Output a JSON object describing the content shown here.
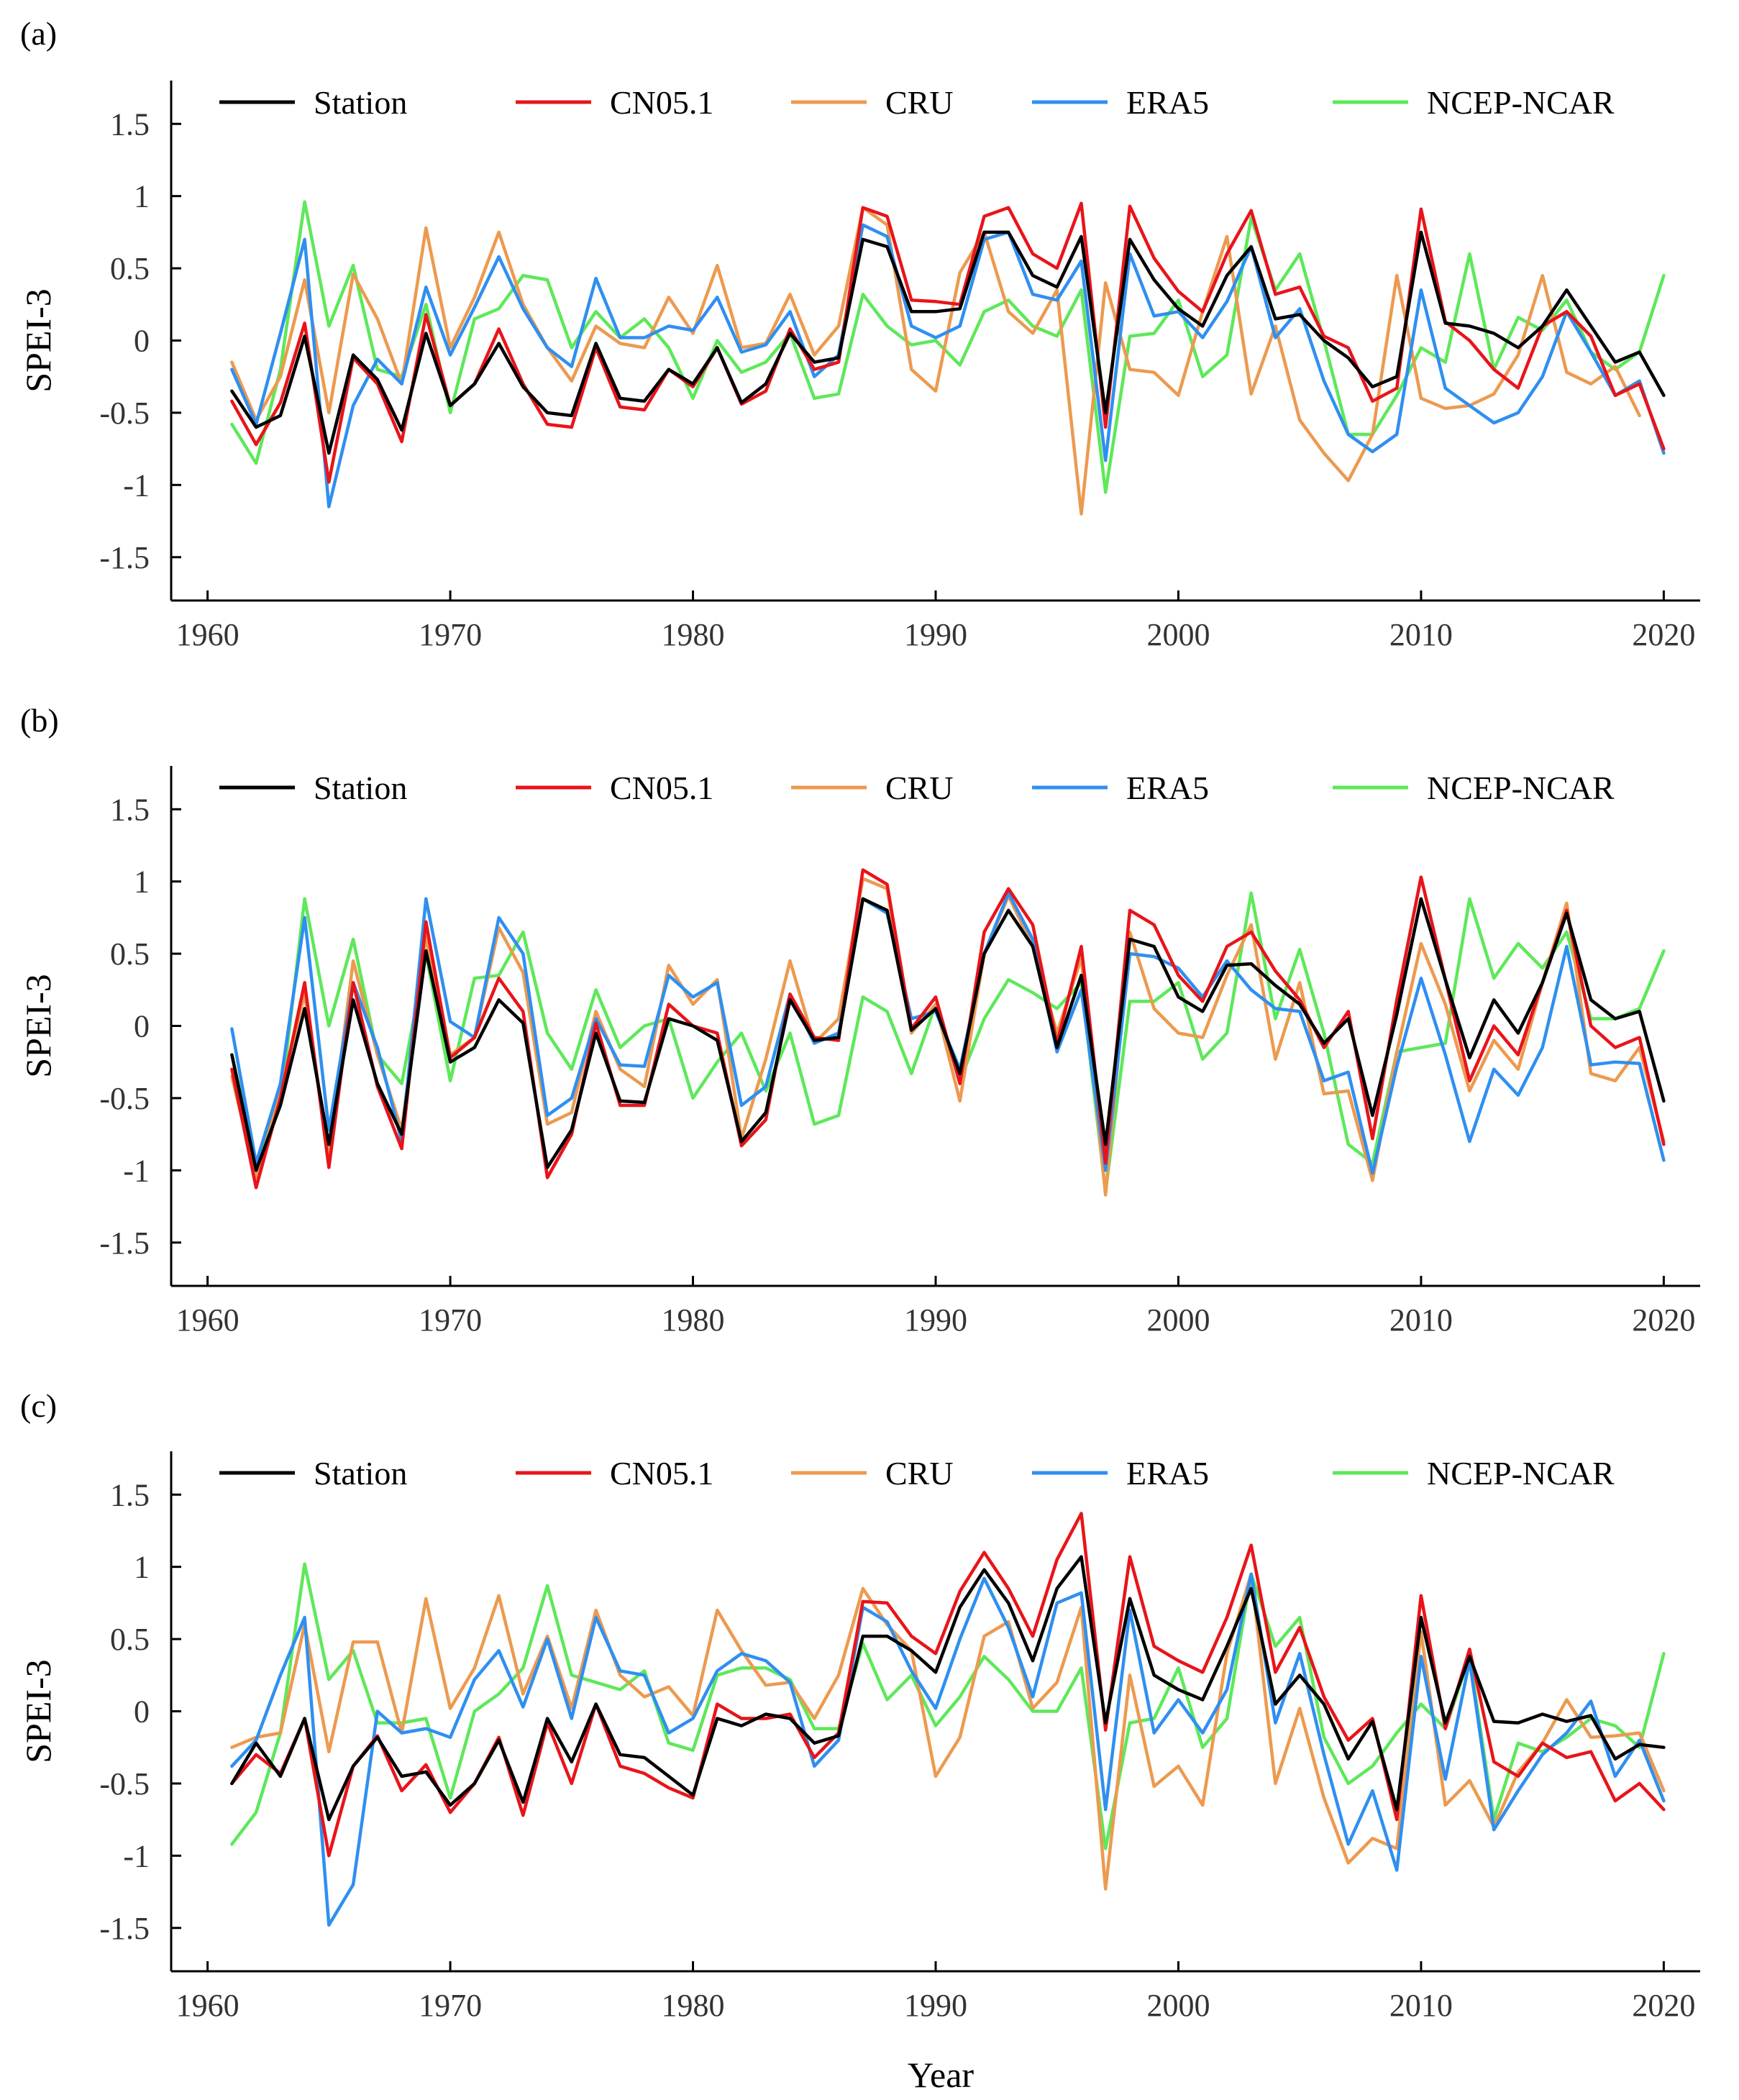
{
  "figure": {
    "xlabel": "Year",
    "colors": {
      "Station": "#000000",
      "CN05.1": "#e8141a",
      "CRU": "#ec9a50",
      "ERA5": "#2f8ff0",
      "NCEP-NCAR": "#5ee85a"
    }
  },
  "chart_data": [
    {
      "panel": "(a)",
      "type": "line",
      "ylabel": "SPEI-3",
      "ylim": [
        -1.8,
        1.8
      ],
      "xlim": [
        1958.5,
        2021.5
      ],
      "xticks": [
        1960,
        1970,
        1980,
        1990,
        2000,
        2010,
        2020
      ],
      "yticks": [
        1.5,
        1,
        0.5,
        0,
        -0.5,
        -1,
        -1.5
      ],
      "ytick_labels": [
        "1.5",
        "1",
        "0.5",
        "0",
        "-0.5",
        "-1",
        "-1.5"
      ],
      "x_start": 1961,
      "series": [
        {
          "name": "NCEP-NCAR",
          "values": [
            -0.58,
            -0.85,
            -0.2,
            0.96,
            0.1,
            0.52,
            -0.2,
            -0.25,
            0.25,
            -0.5,
            0.15,
            0.22,
            0.45,
            0.42,
            -0.05,
            0.2,
            0.02,
            0.15,
            -0.05,
            -0.4,
            0.0,
            -0.22,
            -0.15,
            0.05,
            -0.4,
            -0.37,
            0.32,
            0.1,
            -0.03,
            0.0,
            -0.17,
            0.2,
            0.28,
            0.1,
            0.03,
            0.35,
            -1.05,
            0.03,
            0.05,
            0.28,
            -0.25,
            -0.1,
            0.85,
            0.35,
            0.6,
            0.0,
            -0.65,
            -0.65,
            -0.38,
            -0.05,
            -0.15,
            0.6,
            -0.2,
            0.16,
            0.07,
            0.28,
            -0.08,
            -0.2,
            -0.08,
            0.45
          ]
        },
        {
          "name": "CRU",
          "values": [
            -0.15,
            -0.55,
            -0.25,
            0.42,
            -0.5,
            0.46,
            0.15,
            -0.3,
            0.78,
            -0.05,
            0.3,
            0.75,
            0.25,
            -0.05,
            -0.28,
            0.1,
            -0.02,
            -0.05,
            0.3,
            0.05,
            0.52,
            -0.05,
            -0.02,
            0.32,
            -0.1,
            0.1,
            0.92,
            0.8,
            -0.2,
            -0.35,
            0.47,
            0.75,
            0.2,
            0.05,
            0.35,
            -1.2,
            0.4,
            -0.2,
            -0.22,
            -0.38,
            0.2,
            0.72,
            -0.37,
            0.1,
            -0.55,
            -0.78,
            -0.97,
            -0.65,
            0.45,
            -0.4,
            -0.47,
            -0.45,
            -0.37,
            -0.1,
            0.45,
            -0.22,
            -0.3,
            -0.18,
            -0.52
          ]
        },
        {
          "name": "ERA5",
          "values": [
            -0.2,
            -0.58,
            0.05,
            0.7,
            -1.15,
            -0.45,
            -0.13,
            -0.3,
            0.37,
            -0.1,
            0.23,
            0.58,
            0.22,
            -0.05,
            -0.18,
            0.43,
            0.02,
            0.02,
            0.1,
            0.07,
            0.3,
            -0.08,
            -0.03,
            0.2,
            -0.25,
            -0.1,
            0.8,
            0.72,
            0.1,
            0.02,
            0.1,
            0.7,
            0.75,
            0.32,
            0.28,
            0.55,
            -0.83,
            0.6,
            0.17,
            0.2,
            0.02,
            0.27,
            0.65,
            0.02,
            0.22,
            -0.28,
            -0.65,
            -0.77,
            -0.65,
            0.35,
            -0.33,
            -0.45,
            -0.57,
            -0.5,
            -0.25,
            0.2,
            -0.08,
            -0.38,
            -0.28,
            -0.78
          ]
        },
        {
          "name": "CN05.1",
          "values": [
            -0.42,
            -0.72,
            -0.43,
            0.12,
            -0.98,
            -0.12,
            -0.3,
            -0.7,
            0.18,
            -0.45,
            -0.3,
            0.08,
            -0.3,
            -0.58,
            -0.6,
            -0.05,
            -0.46,
            -0.48,
            -0.2,
            -0.32,
            -0.05,
            -0.44,
            -0.35,
            0.08,
            -0.2,
            -0.15,
            0.92,
            0.86,
            0.28,
            0.27,
            0.25,
            0.86,
            0.92,
            0.6,
            0.5,
            0.95,
            -0.6,
            0.93,
            0.57,
            0.34,
            0.2,
            0.6,
            0.9,
            0.32,
            0.37,
            0.03,
            -0.05,
            -0.42,
            -0.33,
            0.91,
            0.13,
            0.0,
            -0.2,
            -0.33,
            0.1,
            0.2,
            0.03,
            -0.38,
            -0.3,
            -0.75
          ]
        },
        {
          "name": "Station",
          "values": [
            -0.35,
            -0.6,
            -0.52,
            0.03,
            -0.78,
            -0.1,
            -0.27,
            -0.62,
            0.05,
            -0.45,
            -0.3,
            -0.02,
            -0.32,
            -0.5,
            -0.52,
            -0.02,
            -0.4,
            -0.42,
            -0.2,
            -0.3,
            -0.05,
            -0.43,
            -0.3,
            0.05,
            -0.15,
            -0.12,
            0.7,
            0.65,
            0.2,
            0.2,
            0.22,
            0.75,
            0.75,
            0.45,
            0.37,
            0.72,
            -0.5,
            0.7,
            0.42,
            0.22,
            0.1,
            0.45,
            0.65,
            0.15,
            0.18,
            0.0,
            -0.12,
            -0.32,
            -0.25,
            0.75,
            0.12,
            0.1,
            0.05,
            -0.05,
            0.1,
            0.35,
            0.1,
            -0.15,
            -0.08,
            -0.38
          ]
        }
      ]
    },
    {
      "panel": "(b)",
      "type": "line",
      "ylabel": "SPEI-3",
      "ylim": [
        -1.8,
        1.8
      ],
      "xlim": [
        1958.5,
        2021.5
      ],
      "xticks": [
        1960,
        1970,
        1980,
        1990,
        2000,
        2010,
        2020
      ],
      "yticks": [
        1.5,
        1,
        0.5,
        0,
        -0.5,
        -1,
        -1.5
      ],
      "ytick_labels": [
        "1.5",
        "1",
        "0.5",
        "0",
        "-0.5",
        "-1",
        "-1.5"
      ],
      "x_start": 1961,
      "series": [
        {
          "name": "NCEP-NCAR",
          "values": [
            -0.2,
            -0.95,
            -0.55,
            0.88,
            0.0,
            0.6,
            -0.2,
            -0.4,
            0.5,
            -0.38,
            0.33,
            0.35,
            0.65,
            -0.05,
            -0.3,
            0.25,
            -0.15,
            0.0,
            0.05,
            -0.5,
            -0.25,
            -0.05,
            -0.45,
            -0.05,
            -0.68,
            -0.62,
            0.2,
            0.1,
            -0.33,
            0.15,
            -0.38,
            0.05,
            0.32,
            0.23,
            0.12,
            0.3,
            -1.15,
            0.17,
            0.17,
            0.3,
            -0.23,
            -0.05,
            0.92,
            0.05,
            0.53,
            -0.05,
            -0.82,
            -0.95,
            -0.18,
            -0.15,
            -0.12,
            0.88,
            0.33,
            0.57,
            0.4,
            0.65,
            0.05,
            0.05,
            0.12,
            0.52
          ]
        },
        {
          "name": "CRU",
          "values": [
            -0.35,
            -1.05,
            -0.45,
            0.22,
            -0.88,
            0.45,
            -0.2,
            -0.72,
            0.62,
            -0.2,
            -0.08,
            0.68,
            0.37,
            -0.68,
            -0.6,
            0.1,
            -0.3,
            -0.42,
            0.42,
            0.15,
            0.32,
            -0.78,
            -0.23,
            0.45,
            -0.12,
            0.05,
            1.02,
            0.95,
            -0.05,
            0.15,
            -0.52,
            0.5,
            0.9,
            0.55,
            -0.05,
            0.47,
            -1.17,
            0.65,
            0.12,
            -0.05,
            -0.08,
            0.35,
            0.7,
            -0.23,
            0.3,
            -0.47,
            -0.45,
            -1.07,
            -0.18,
            0.57,
            0.15,
            -0.45,
            -0.1,
            -0.3,
            0.3,
            0.85,
            -0.33,
            -0.38,
            -0.15,
            -0.8
          ]
        },
        {
          "name": "ERA5",
          "values": [
            -0.02,
            -0.95,
            -0.4,
            0.75,
            -0.72,
            0.3,
            -0.15,
            -0.8,
            0.88,
            0.03,
            -0.08,
            0.75,
            0.5,
            -0.62,
            -0.5,
            0.05,
            -0.27,
            -0.28,
            0.35,
            0.2,
            0.3,
            -0.55,
            -0.42,
            0.22,
            -0.12,
            -0.05,
            0.88,
            0.78,
            0.05,
            0.1,
            -0.3,
            0.5,
            0.92,
            0.6,
            -0.18,
            0.25,
            -1.0,
            0.5,
            0.48,
            0.4,
            0.2,
            0.45,
            0.25,
            0.12,
            0.1,
            -0.38,
            -0.32,
            -1.02,
            -0.28,
            0.33,
            -0.2,
            -0.8,
            -0.3,
            -0.48,
            -0.15,
            0.55,
            -0.27,
            -0.25,
            -0.26,
            -0.93
          ]
        },
        {
          "name": "CN05.1",
          "values": [
            -0.3,
            -1.12,
            -0.5,
            0.3,
            -0.98,
            0.3,
            -0.42,
            -0.85,
            0.72,
            -0.22,
            -0.08,
            0.33,
            0.1,
            -1.05,
            -0.75,
            0.02,
            -0.55,
            -0.55,
            0.15,
            0.0,
            -0.05,
            -0.83,
            -0.65,
            0.22,
            -0.08,
            -0.1,
            1.08,
            0.98,
            -0.02,
            0.2,
            -0.4,
            0.65,
            0.95,
            0.7,
            -0.12,
            0.55,
            -0.95,
            0.8,
            0.7,
            0.35,
            0.17,
            0.55,
            0.65,
            0.38,
            0.18,
            -0.15,
            0.1,
            -0.78,
            0.18,
            1.03,
            0.32,
            -0.38,
            0.0,
            -0.2,
            0.3,
            0.8,
            0.0,
            -0.15,
            -0.08,
            -0.82
          ]
        },
        {
          "name": "Station",
          "values": [
            -0.2,
            -1.0,
            -0.55,
            0.12,
            -0.82,
            0.18,
            -0.4,
            -0.75,
            0.52,
            -0.25,
            -0.15,
            0.18,
            0.02,
            -0.98,
            -0.72,
            -0.05,
            -0.52,
            -0.53,
            0.05,
            0.0,
            -0.1,
            -0.8,
            -0.6,
            0.18,
            -0.1,
            -0.08,
            0.88,
            0.8,
            -0.03,
            0.12,
            -0.33,
            0.5,
            0.8,
            0.55,
            -0.15,
            0.35,
            -0.82,
            0.6,
            0.55,
            0.2,
            0.1,
            0.42,
            0.43,
            0.28,
            0.15,
            -0.12,
            0.05,
            -0.62,
            0.08,
            0.88,
            0.32,
            -0.22,
            0.18,
            -0.05,
            0.3,
            0.78,
            0.18,
            0.05,
            0.1,
            -0.52
          ]
        }
      ]
    },
    {
      "panel": "(c)",
      "type": "line",
      "ylabel": "SPEI-3",
      "ylim": [
        -1.8,
        1.8
      ],
      "xlim": [
        1958.5,
        2021.5
      ],
      "xticks": [
        1960,
        1970,
        1980,
        1990,
        2000,
        2010,
        2020
      ],
      "yticks": [
        1.5,
        1,
        0.5,
        0,
        -0.5,
        -1,
        -1.5
      ],
      "ytick_labels": [
        "1.5",
        "1",
        "0.5",
        "0",
        "-0.5",
        "-1",
        "-1.5"
      ],
      "x_start": 1961,
      "series": [
        {
          "name": "NCEP-NCAR",
          "values": [
            -0.92,
            -0.7,
            -0.15,
            1.02,
            0.22,
            0.42,
            -0.08,
            -0.08,
            -0.05,
            -0.6,
            0.0,
            0.12,
            0.3,
            0.87,
            0.25,
            0.2,
            0.15,
            0.28,
            -0.22,
            -0.27,
            0.25,
            0.3,
            0.3,
            0.22,
            -0.12,
            -0.12,
            0.47,
            0.08,
            0.25,
            -0.1,
            0.1,
            0.38,
            0.22,
            0.0,
            0.0,
            0.3,
            -0.95,
            -0.08,
            -0.05,
            0.3,
            -0.25,
            -0.05,
            0.95,
            0.45,
            0.65,
            -0.18,
            -0.5,
            -0.38,
            -0.15,
            0.05,
            -0.12,
            0.38,
            -0.75,
            -0.22,
            -0.28,
            -0.18,
            -0.05,
            -0.1,
            -0.25,
            0.4
          ]
        },
        {
          "name": "CRU",
          "values": [
            -0.25,
            -0.18,
            -0.15,
            0.6,
            -0.28,
            0.48,
            0.48,
            -0.15,
            0.78,
            0.02,
            0.3,
            0.8,
            0.12,
            0.52,
            0.02,
            0.7,
            0.25,
            0.1,
            0.17,
            -0.03,
            0.7,
            0.42,
            0.18,
            0.2,
            -0.05,
            0.25,
            0.85,
            0.6,
            0.42,
            -0.45,
            -0.18,
            0.52,
            0.62,
            0.02,
            0.2,
            0.72,
            -1.23,
            0.25,
            -0.52,
            -0.38,
            -0.65,
            0.4,
            0.95,
            -0.5,
            0.02,
            -0.6,
            -1.05,
            -0.88,
            -0.95,
            0.55,
            -0.65,
            -0.48,
            -0.8,
            -0.42,
            -0.22,
            0.08,
            -0.18,
            -0.17,
            -0.15,
            -0.55
          ]
        },
        {
          "name": "ERA5",
          "values": [
            -0.38,
            -0.2,
            0.25,
            0.65,
            -1.48,
            -1.2,
            0.0,
            -0.15,
            -0.12,
            -0.18,
            0.22,
            0.42,
            0.03,
            0.5,
            -0.05,
            0.65,
            0.28,
            0.25,
            -0.15,
            -0.05,
            0.28,
            0.4,
            0.35,
            0.2,
            -0.38,
            -0.2,
            0.72,
            0.62,
            0.28,
            0.02,
            0.5,
            0.92,
            0.58,
            0.1,
            0.75,
            0.82,
            -0.68,
            0.7,
            -0.15,
            0.08,
            -0.15,
            0.15,
            0.95,
            -0.08,
            0.4,
            -0.3,
            -0.92,
            -0.55,
            -1.1,
            0.38,
            -0.47,
            0.35,
            -0.82,
            -0.55,
            -0.3,
            -0.15,
            0.07,
            -0.45,
            -0.2,
            -0.62
          ]
        },
        {
          "name": "CN05.1",
          "values": [
            -0.5,
            -0.3,
            -0.43,
            -0.05,
            -1.0,
            -0.38,
            -0.17,
            -0.55,
            -0.37,
            -0.7,
            -0.5,
            -0.18,
            -0.72,
            -0.08,
            -0.5,
            0.05,
            -0.38,
            -0.43,
            -0.53,
            -0.6,
            0.05,
            -0.05,
            -0.05,
            -0.02,
            -0.32,
            -0.15,
            0.76,
            0.75,
            0.52,
            0.4,
            0.83,
            1.1,
            0.85,
            0.52,
            1.05,
            1.37,
            -0.13,
            1.07,
            0.45,
            0.35,
            0.27,
            0.65,
            1.15,
            0.27,
            0.58,
            0.1,
            -0.2,
            -0.05,
            -0.75,
            0.8,
            -0.12,
            0.43,
            -0.35,
            -0.45,
            -0.22,
            -0.32,
            -0.28,
            -0.62,
            -0.5,
            -0.68
          ]
        },
        {
          "name": "Station",
          "values": [
            -0.5,
            -0.22,
            -0.45,
            -0.05,
            -0.75,
            -0.38,
            -0.18,
            -0.45,
            -0.42,
            -0.65,
            -0.5,
            -0.2,
            -0.63,
            -0.05,
            -0.35,
            0.05,
            -0.3,
            -0.32,
            -0.45,
            -0.58,
            -0.05,
            -0.1,
            -0.02,
            -0.05,
            -0.22,
            -0.17,
            0.52,
            0.52,
            0.42,
            0.27,
            0.72,
            0.98,
            0.75,
            0.35,
            0.85,
            1.07,
            -0.08,
            0.78,
            0.25,
            0.15,
            0.08,
            0.45,
            0.85,
            0.05,
            0.25,
            0.05,
            -0.33,
            -0.07,
            -0.68,
            0.65,
            -0.08,
            0.38,
            -0.07,
            -0.08,
            -0.02,
            -0.07,
            -0.03,
            -0.33,
            -0.23,
            -0.25
          ]
        }
      ]
    }
  ]
}
